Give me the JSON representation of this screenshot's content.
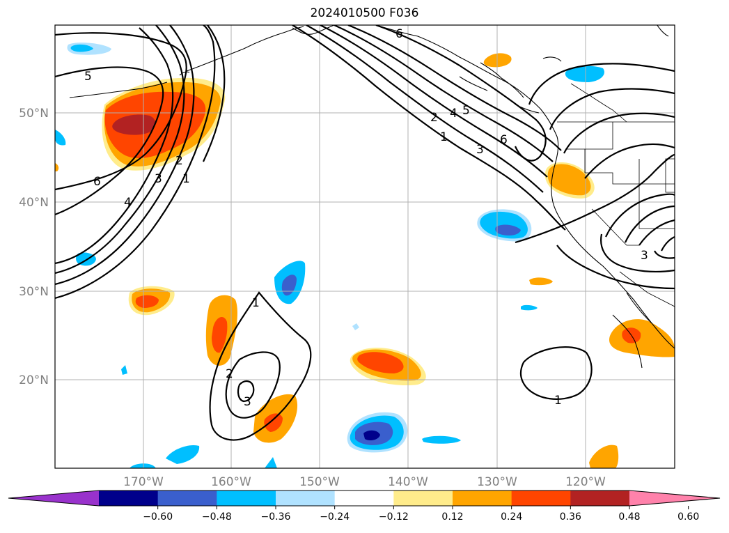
{
  "title": "2024010500 F036",
  "lat_labels": [
    "50°N",
    "40°N",
    "30°N",
    "20°N"
  ],
  "lon_labels": [
    "170°W",
    "160°W",
    "150°W",
    "140°W",
    "130°W",
    "120°W"
  ],
  "colorbar": {
    "ticks": [
      "−0.60",
      "−0.48",
      "−0.36",
      "−0.24",
      "−0.12",
      "0.12",
      "0.24",
      "0.36",
      "0.48",
      "0.60"
    ],
    "colors": [
      "#9932cc",
      "#00008b",
      "#3a5fcd",
      "#00bfff",
      "#b0e2ff",
      "#ffffff",
      "#ffec8b",
      "#ffa500",
      "#ff4500",
      "#b22222",
      "#ff82ab"
    ]
  },
  "contour_labels": [
    "5",
    "6",
    "4",
    "3",
    "2",
    "1",
    "6",
    "2",
    "4",
    "5",
    "1",
    "3",
    "6",
    "1",
    "2",
    "3",
    "1",
    "3"
  ]
}
